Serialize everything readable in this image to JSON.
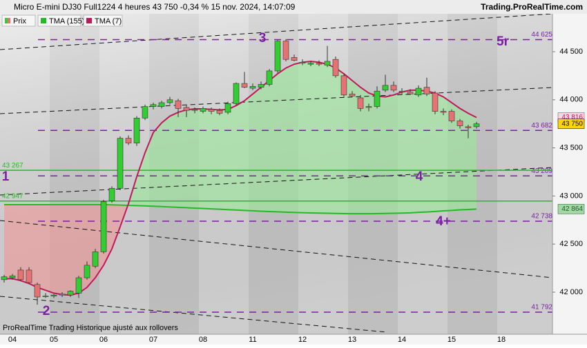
{
  "header": {
    "title": "Micro E-mini DJ30 Full1224 4 heures 43 750 -0,34 % 15 nov. 2024, 14:07:09",
    "brand": "Trading.ProRealTime.com"
  },
  "footer": "ProRealTime Trading Historique ajusté aux rollovers",
  "chart_data": {
    "type": "candlestick",
    "categories": [
      null,
      "04",
      null,
      null,
      null,
      null,
      "05",
      null,
      null,
      null,
      null,
      null,
      "06",
      null,
      null,
      null,
      null,
      null,
      "07",
      null,
      null,
      null,
      null,
      null,
      "08",
      null,
      null,
      null,
      null,
      null,
      "11",
      null,
      null,
      null,
      null,
      null,
      "12",
      null,
      null,
      null,
      null,
      null,
      "13",
      null,
      null,
      null,
      null,
      null,
      "14",
      null,
      null,
      null,
      null,
      null,
      "15",
      null,
      null,
      null,
      null,
      null,
      "18"
    ],
    "series": [
      {
        "name": "Prix",
        "up_color": "#33cc33",
        "color": "#e57373",
        "open": [
          42130,
          42150,
          42230,
          42230,
          42080,
          41960,
          41960,
          41970,
          41970,
          41990,
          42150,
          42270,
          42420,
          42950,
          43080,
          43600,
          43550,
          43810,
          43930,
          43930,
          43970,
          43990,
          43920,
          43890,
          43880,
          43900,
          43890,
          43870,
          43960,
          44170,
          44120,
          44130,
          44160,
          44300,
          44610,
          44440,
          44390,
          44370,
          44380,
          44360,
          44420,
          44250,
          44060,
          44020,
          43920,
          43930,
          44100,
          44150,
          44090,
          44080,
          44050,
          44130,
          44070,
          43880,
          43880,
          43780,
          43720,
          43720,
          null,
          null,
          null
        ],
        "high": [
          42180,
          42190,
          42260,
          42260,
          42100,
          41990,
          41980,
          42000,
          42020,
          42170,
          42320,
          42450,
          42960,
          43100,
          43620,
          43630,
          43830,
          43950,
          43970,
          43990,
          44030,
          44010,
          43950,
          43920,
          43930,
          43920,
          43910,
          43980,
          44180,
          44290,
          44170,
          44190,
          44320,
          44620,
          44630,
          44470,
          44420,
          44400,
          44410,
          44560,
          44450,
          44270,
          44090,
          44050,
          43960,
          44140,
          44260,
          44190,
          44120,
          44110,
          44150,
          44230,
          44090,
          43910,
          43900,
          43800,
          43740,
          43770,
          null,
          null,
          null
        ],
        "low": [
          42100,
          42130,
          42120,
          42090,
          41870,
          41940,
          41940,
          41950,
          41950,
          41940,
          42130,
          42250,
          42400,
          42930,
          43060,
          43530,
          43520,
          43790,
          43900,
          43910,
          43950,
          43820,
          43820,
          43860,
          43860,
          43850,
          43840,
          43850,
          43940,
          44120,
          44100,
          44110,
          44140,
          44280,
          44400,
          44400,
          44360,
          44350,
          44350,
          44340,
          44230,
          44030,
          44030,
          43880,
          43880,
          43910,
          44080,
          44080,
          44050,
          44050,
          44030,
          44040,
          43850,
          43840,
          43760,
          43700,
          43600,
          43700,
          null,
          null,
          null
        ],
        "close": [
          42160,
          42170,
          42130,
          42100,
          41950,
          41960,
          41970,
          41980,
          42010,
          42150,
          42280,
          42420,
          42940,
          43080,
          43600,
          43550,
          43810,
          43930,
          43950,
          43970,
          44000,
          43910,
          43890,
          43900,
          43910,
          43880,
          43860,
          43960,
          44170,
          44130,
          44140,
          44160,
          44300,
          44610,
          44420,
          44410,
          44380,
          44380,
          44370,
          44400,
          44250,
          44050,
          44040,
          43910,
          43930,
          44090,
          44150,
          44100,
          44080,
          44060,
          44120,
          44060,
          43880,
          43870,
          43780,
          43730,
          43710,
          43750,
          null,
          null,
          null
        ]
      },
      {
        "name": "TMA (155)",
        "color": "#22bb22",
        "values": [
          42910,
          42910,
          42910,
          42910,
          42910,
          42910,
          42910,
          42910,
          42910,
          42910,
          42910,
          42910,
          42910,
          42908,
          42905,
          42903,
          42900,
          42897,
          42894,
          42890,
          42886,
          42882,
          42878,
          42874,
          42870,
          42866,
          42862,
          42858,
          42854,
          42850,
          42846,
          42842,
          42838,
          42835,
          42832,
          42829,
          42826,
          42824,
          42822,
          42820,
          42818,
          42817,
          42816,
          42816,
          42816,
          42817,
          42818,
          42820,
          42822,
          42825,
          42830,
          42834,
          42839,
          42845,
          42850,
          42856,
          42860,
          42864,
          null,
          null,
          null
        ]
      },
      {
        "name": "TMA (7)",
        "color": "#c2185b",
        "values": [
          42140,
          42140,
          42120,
          42090,
          42050,
          42020,
          41990,
          41975,
          41970,
          41990,
          42050,
          42150,
          42280,
          42450,
          42680,
          42920,
          43200,
          43450,
          43660,
          43760,
          43830,
          43870,
          43895,
          43905,
          43905,
          43900,
          43895,
          43900,
          43940,
          43990,
          44060,
          44130,
          44200,
          44270,
          44330,
          44370,
          44390,
          44400,
          44390,
          44370,
          44330,
          44270,
          44200,
          44130,
          44070,
          44040,
          44030,
          44050,
          44080,
          44100,
          44100,
          44090,
          44070,
          44030,
          43970,
          43910,
          43860,
          43816,
          null,
          null,
          null
        ]
      }
    ],
    "ylim": [
      41563,
      44894
    ],
    "yticks": [
      {
        "value": 42000,
        "label": "42 000"
      },
      {
        "value": 42500,
        "label": "42 500"
      },
      {
        "value": 43000,
        "label": "43 000"
      },
      {
        "value": 43500,
        "label": "43 500"
      },
      {
        "value": 44000,
        "label": "44 000"
      },
      {
        "value": 44500,
        "label": "44 500"
      }
    ],
    "levels": [
      {
        "value": 44625,
        "label": "44 625",
        "color": "#7b1fa2",
        "style": "dashed"
      },
      {
        "value": 43682,
        "label": "43 682",
        "color": "#7b1fa2",
        "style": "dashed"
      },
      {
        "value": 43209,
        "label": "43 209",
        "color": "#7b1fa2",
        "style": "dashed"
      },
      {
        "value": 42738,
        "label": "42 738",
        "color": "#7b1fa2",
        "style": "dashed"
      },
      {
        "value": 41792,
        "label": "41 792",
        "color": "#7b1fa2",
        "style": "dashed"
      },
      {
        "value": 43267,
        "label": "43 267",
        "color": "#22bb22",
        "style": "solid"
      },
      {
        "value": 42947,
        "label": "42 947",
        "color": "#22bb22",
        "style": "solid"
      }
    ],
    "markers": [
      {
        "value": 43816,
        "label": "43 816",
        "color": "#c2185b",
        "fill": "#f8d7e4"
      },
      {
        "value": 43750,
        "label": "43 750",
        "color": "#000000",
        "fill": "#ffd700"
      },
      {
        "value": 42864,
        "label": "42 864",
        "color": "#1b5e20",
        "fill": "#a5d6a7"
      }
    ],
    "annotations": [
      "3",
      "5r",
      "4",
      "4+",
      "1",
      "2"
    ]
  }
}
